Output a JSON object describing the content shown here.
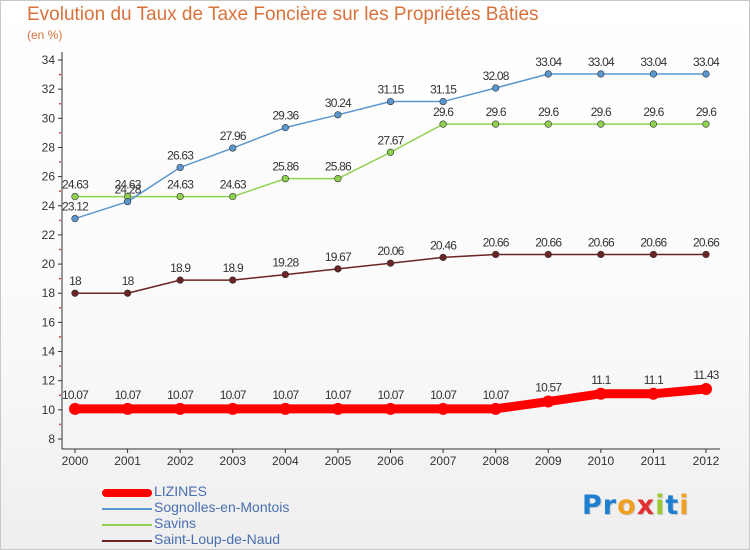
{
  "title": "Evolution du Taux de Taxe Foncière sur les Propriétés Bâties",
  "subtitle": "(en %)",
  "logo": "Proxiti",
  "chart_data": {
    "type": "line",
    "x": [
      "2000",
      "2001",
      "2002",
      "2003",
      "2004",
      "2005",
      "2006",
      "2007",
      "2008",
      "2009",
      "2010",
      "2011",
      "2012"
    ],
    "ylim": [
      8,
      34
    ],
    "yticks": [
      8,
      10,
      12,
      14,
      16,
      18,
      20,
      22,
      24,
      26,
      28,
      30,
      32,
      34
    ],
    "grid": false,
    "legend_position": "bottom-left",
    "series": [
      {
        "name": "Saint-Loup-de-Naud",
        "color": "#6b2424",
        "values": [
          18,
          18,
          18.9,
          18.9,
          19.28,
          19.67,
          20.06,
          20.46,
          20.66,
          20.66,
          20.66,
          20.66,
          20.66
        ],
        "labels": [
          "18",
          "18",
          "18.9",
          "18.9",
          "19.28",
          "19.67",
          "20.06",
          "20.46",
          "20.66",
          "20.66",
          "20.66",
          "20.66",
          "20.66"
        ]
      },
      {
        "name": "Savins",
        "color": "#8fd14f",
        "values": [
          24.63,
          24.63,
          24.63,
          24.63,
          25.86,
          25.86,
          27.67,
          29.6,
          29.6,
          29.6,
          29.6,
          29.6,
          29.6
        ],
        "labels": [
          "24.63",
          "24.63",
          "24.63",
          "24.63",
          "25.86",
          "25.86",
          "27.67",
          "29.6",
          "29.6",
          "29.6",
          "29.6",
          "29.6",
          "29.6"
        ]
      },
      {
        "name": "Sognolles-en-Montois",
        "color": "#5b97cf",
        "values": [
          23.12,
          24.28,
          26.63,
          27.96,
          29.36,
          30.24,
          31.15,
          31.15,
          32.08,
          33.04,
          33.04,
          33.04,
          33.04
        ],
        "labels": [
          "23.12",
          "24.28",
          "26.63",
          "27.96",
          "29.36",
          "30.24",
          "31.15",
          "31.15",
          "32.08",
          "33.04",
          "33.04",
          "33.04",
          "33.04"
        ]
      },
      {
        "name": "LIZINES",
        "color": "#ff0000",
        "values": [
          10.07,
          10.07,
          10.07,
          10.07,
          10.07,
          10.07,
          10.07,
          10.07,
          10.07,
          10.57,
          11.1,
          11.1,
          11.43
        ],
        "labels": [
          "10.07",
          "10.07",
          "10.07",
          "10.07",
          "10.07",
          "10.07",
          "10.07",
          "10.07",
          "10.07",
          "10.57",
          "11.1",
          "11.1",
          "11.43"
        ]
      }
    ]
  },
  "legend": [
    {
      "label": "LIZINES",
      "color": "#ff0000",
      "thick": true
    },
    {
      "label": "Sognolles-en-Montois",
      "color": "#5b97cf",
      "thick": false
    },
    {
      "label": "Savins",
      "color": "#8fd14f",
      "thick": false
    },
    {
      "label": "Saint-Loup-de-Naud",
      "color": "#6b2424",
      "thick": false
    }
  ]
}
